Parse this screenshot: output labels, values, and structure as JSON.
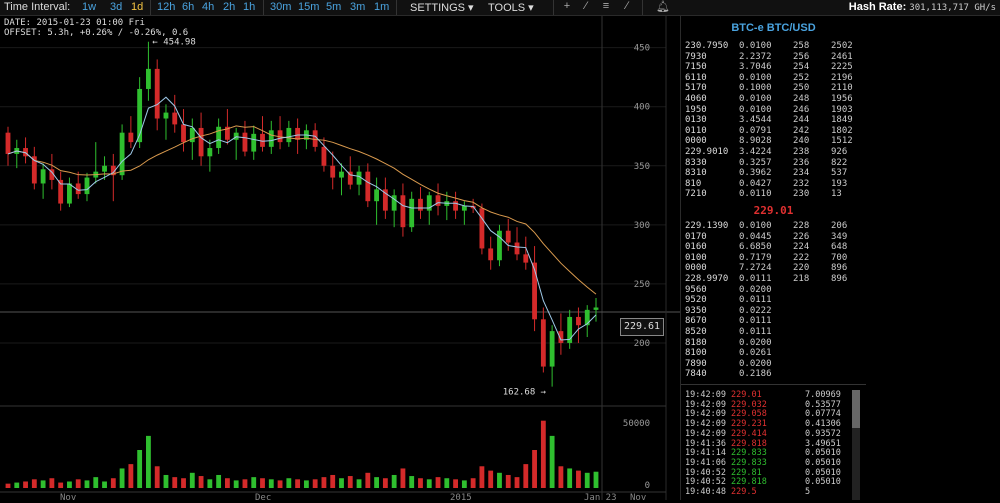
{
  "toolbar": {
    "interval_label": "Time Interval:",
    "intervals": [
      "1w",
      "3d",
      "1d",
      "12h",
      "6h",
      "4h",
      "2h",
      "1h",
      "30m",
      "15m",
      "5m",
      "3m",
      "1m"
    ],
    "active_interval": "1d",
    "settings_label": "SETTINGS ▾",
    "tools_label": "TOOLS ▾",
    "tools": [
      "crosshair-icon",
      "draw-line-icon",
      "ray-icon",
      "fib-icon",
      "alert-icon"
    ],
    "hash_label": "Hash Rate:",
    "hash_value": "301,113,717 GH/s"
  },
  "info": {
    "date_line": "DATE: 2015-01-23 01:00 Fri",
    "offset_line": "OFFSET: 5.3h, +0.26% / -0.26%, 0.6"
  },
  "chart_data": {
    "type": "candlestick",
    "y_ticks": [
      450,
      400,
      350,
      300,
      250,
      200
    ],
    "volume_ticks": [
      50000,
      0
    ],
    "x_labels": [
      "Nov",
      "Dec",
      "2015",
      "Jan 23",
      "Nov"
    ],
    "high_marker": "454.98",
    "low_marker": "162.68",
    "last_price": "229.61",
    "colors": {
      "up": "#2fbf2f",
      "down": "#d42a2a",
      "ma_fast": "#9ec9e8",
      "ma_slow": "#d99a4e"
    },
    "ylim": [
      150,
      470
    ],
    "candles": [
      [
        378,
        383,
        350,
        360
      ],
      [
        360,
        372,
        348,
        365
      ],
      [
        365,
        374,
        352,
        358
      ],
      [
        358,
        366,
        330,
        335
      ],
      [
        335,
        352,
        322,
        347
      ],
      [
        347,
        360,
        330,
        338
      ],
      [
        338,
        345,
        312,
        318
      ],
      [
        318,
        340,
        315,
        335
      ],
      [
        335,
        345,
        322,
        326
      ],
      [
        326,
        344,
        320,
        340
      ],
      [
        340,
        370,
        335,
        345
      ],
      [
        345,
        358,
        338,
        350
      ],
      [
        350,
        360,
        320,
        342
      ],
      [
        342,
        385,
        338,
        378
      ],
      [
        378,
        392,
        365,
        370
      ],
      [
        370,
        425,
        365,
        415
      ],
      [
        415,
        455,
        405,
        432
      ],
      [
        432,
        440,
        380,
        390
      ],
      [
        390,
        402,
        372,
        395
      ],
      [
        395,
        410,
        378,
        385
      ],
      [
        385,
        398,
        362,
        370
      ],
      [
        370,
        390,
        355,
        382
      ],
      [
        382,
        395,
        350,
        358
      ],
      [
        358,
        372,
        345,
        365
      ],
      [
        365,
        390,
        360,
        383
      ],
      [
        383,
        398,
        368,
        372
      ],
      [
        372,
        382,
        355,
        378
      ],
      [
        378,
        388,
        358,
        362
      ],
      [
        362,
        384,
        355,
        377
      ],
      [
        377,
        392,
        362,
        366
      ],
      [
        366,
        388,
        360,
        380
      ],
      [
        380,
        392,
        364,
        370
      ],
      [
        370,
        388,
        366,
        382
      ],
      [
        382,
        390,
        360,
        372
      ],
      [
        372,
        385,
        364,
        380
      ],
      [
        380,
        386,
        362,
        366
      ],
      [
        366,
        374,
        345,
        350
      ],
      [
        350,
        362,
        330,
        340
      ],
      [
        340,
        352,
        325,
        345
      ],
      [
        345,
        358,
        330,
        334
      ],
      [
        334,
        350,
        325,
        345
      ],
      [
        345,
        352,
        315,
        320
      ],
      [
        320,
        340,
        300,
        330
      ],
      [
        330,
        340,
        305,
        312
      ],
      [
        312,
        330,
        298,
        325
      ],
      [
        325,
        335,
        290,
        298
      ],
      [
        298,
        328,
        294,
        322
      ],
      [
        322,
        332,
        305,
        312
      ],
      [
        312,
        328,
        300,
        325
      ],
      [
        325,
        335,
        308,
        316
      ],
      [
        316,
        328,
        304,
        320
      ],
      [
        320,
        328,
        305,
        312
      ],
      [
        312,
        320,
        300,
        316
      ],
      [
        316,
        322,
        310,
        314
      ],
      [
        314,
        318,
        275,
        280
      ],
      [
        280,
        290,
        262,
        270
      ],
      [
        270,
        300,
        265,
        295
      ],
      [
        295,
        305,
        278,
        285
      ],
      [
        285,
        298,
        270,
        275
      ],
      [
        275,
        290,
        262,
        268
      ],
      [
        268,
        282,
        210,
        220
      ],
      [
        220,
        230,
        175,
        180
      ],
      [
        180,
        215,
        163,
        210
      ],
      [
        210,
        225,
        190,
        200
      ],
      [
        200,
        228,
        195,
        222
      ],
      [
        222,
        230,
        200,
        215
      ],
      [
        215,
        232,
        205,
        228
      ],
      [
        228,
        238,
        218,
        230
      ]
    ],
    "volumes": [
      4,
      5,
      6,
      8,
      7,
      9,
      5,
      6,
      8,
      7,
      10,
      6,
      9,
      18,
      22,
      35,
      48,
      20,
      12,
      10,
      9,
      14,
      11,
      8,
      12,
      9,
      7,
      8,
      10,
      9,
      8,
      7,
      9,
      8,
      7,
      8,
      10,
      12,
      9,
      11,
      8,
      14,
      10,
      9,
      12,
      18,
      11,
      9,
      8,
      10,
      9,
      8,
      7,
      9,
      20,
      16,
      14,
      12,
      10,
      22,
      35,
      62,
      48,
      20,
      18,
      16,
      14,
      15
    ]
  },
  "orderbook": {
    "title": "BTC-e BTC/USD",
    "asks": [
      [
        "230.7950",
        "0.0100",
        "258",
        "2502"
      ],
      [
        "7930",
        "2.2372",
        "256",
        "2461"
      ],
      [
        "7150",
        "3.7046",
        "254",
        "2225"
      ],
      [
        "6110",
        "0.0100",
        "252",
        "2196"
      ],
      [
        "5170",
        "0.1000",
        "250",
        "2110"
      ],
      [
        "4060",
        "0.0100",
        "248",
        "1956"
      ],
      [
        "1950",
        "0.0100",
        "246",
        "1903"
      ],
      [
        "0130",
        "3.4544",
        "244",
        "1849"
      ],
      [
        "0110",
        "0.0791",
        "242",
        "1802"
      ],
      [
        "0000",
        "8.9028",
        "240",
        "1512"
      ],
      [
        "229.9010",
        "3.4224",
        "238",
        "926"
      ],
      [
        "8330",
        "0.3257",
        "236",
        "822"
      ],
      [
        "8310",
        "0.3962",
        "234",
        "537"
      ],
      [
        "810",
        "0.0427",
        "232",
        "193"
      ],
      [
        "7210",
        "0.0110",
        "230",
        "13"
      ]
    ],
    "mid": "229.01",
    "bids": [
      [
        "229.1390",
        "0.0100",
        "228",
        "206"
      ],
      [
        "0170",
        "0.0445",
        "226",
        "349"
      ],
      [
        "0160",
        "6.6850",
        "224",
        "648"
      ],
      [
        "0100",
        "0.7179",
        "222",
        "700"
      ],
      [
        "0000",
        "7.2724",
        "220",
        "896"
      ],
      [
        "228.9970",
        "0.0111",
        "218",
        "896"
      ],
      [
        "9560",
        "0.0200",
        "",
        ""
      ],
      [
        "9520",
        "0.0111",
        "",
        ""
      ],
      [
        "9350",
        "0.0222",
        "",
        ""
      ],
      [
        "8670",
        "0.0111",
        "",
        ""
      ],
      [
        "8520",
        "0.0111",
        "",
        ""
      ],
      [
        "8180",
        "0.0200",
        "",
        ""
      ],
      [
        "8100",
        "0.0261",
        "",
        ""
      ],
      [
        "7890",
        "0.0200",
        "",
        ""
      ],
      [
        "7840",
        "0.2186",
        "",
        ""
      ]
    ],
    "trades": [
      [
        "19:42:09",
        "229.01",
        "7.00969",
        "down"
      ],
      [
        "19:42:09",
        "229.032",
        "0.53577",
        "down"
      ],
      [
        "19:42:09",
        "229.058",
        "0.07774",
        "down"
      ],
      [
        "19:42:09",
        "229.231",
        "0.41306",
        "down"
      ],
      [
        "19:42:09",
        "229.414",
        "0.93572",
        "down"
      ],
      [
        "19:41:36",
        "229.818",
        "3.49651",
        "down"
      ],
      [
        "19:41:14",
        "229.833",
        "0.05010",
        "up"
      ],
      [
        "19:41:06",
        "229.833",
        "0.05010",
        "up"
      ],
      [
        "19:40:52",
        "229.81",
        "0.05010",
        "up"
      ],
      [
        "19:40:52",
        "229.818",
        "0.05010",
        "up"
      ],
      [
        "19:40:48",
        "229.5",
        "5",
        "down"
      ]
    ]
  }
}
